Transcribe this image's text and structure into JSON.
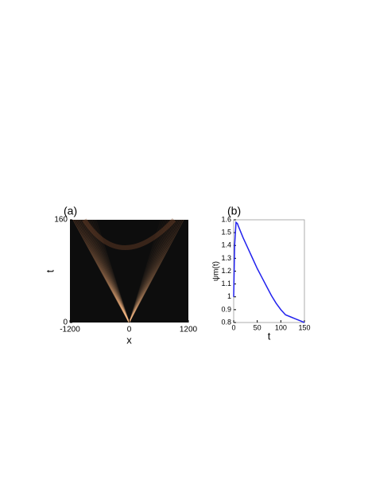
{
  "chart_data": [
    {
      "type": "heatmap",
      "title": "(a)",
      "xlabel": "x",
      "ylabel": "t",
      "xlim": [
        -1200,
        1200
      ],
      "xticks": [
        -1200,
        0,
        1200
      ],
      "ylim": [
        0,
        160
      ],
      "yticks": [
        0,
        160
      ]
    },
    {
      "type": "line",
      "title": "(b)",
      "xlabel": "t",
      "ylabel": "ψm(t)",
      "xlim": [
        0,
        150
      ],
      "xticks": [
        0,
        50,
        100,
        150
      ],
      "ylim": [
        0.8,
        1.6
      ],
      "yticks": [
        0.8,
        0.9,
        1,
        1.1,
        1.2,
        1.3,
        1.4,
        1.5,
        1.6
      ],
      "series": [
        {
          "color": "#2222ee",
          "x": [
            0,
            2,
            5,
            8,
            10,
            20,
            30,
            40,
            50,
            60,
            70,
            80,
            90,
            100,
            110,
            120,
            130,
            140,
            150
          ],
          "values": [
            1.0,
            1.4,
            1.58,
            1.57,
            1.55,
            1.46,
            1.38,
            1.3,
            1.22,
            1.15,
            1.08,
            1.01,
            0.95,
            0.9,
            0.86,
            0.845,
            0.83,
            0.815,
            0.8
          ]
        }
      ]
    }
  ]
}
